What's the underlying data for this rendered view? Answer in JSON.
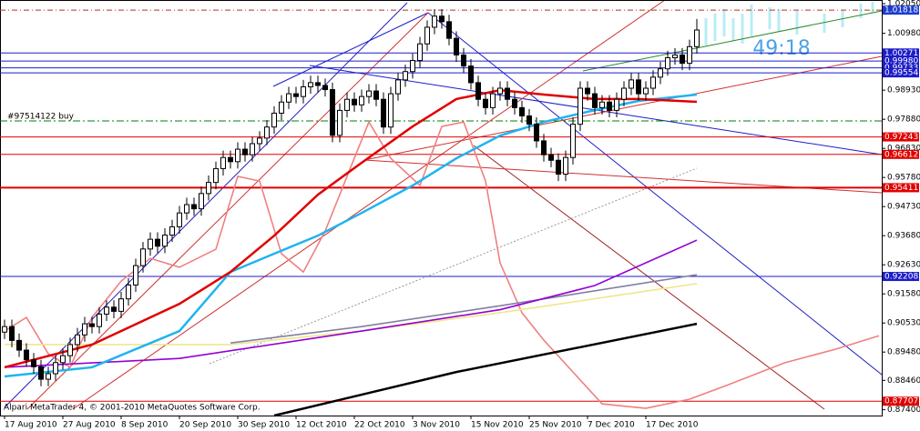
{
  "chart_data": {
    "type": "candlestick",
    "watermark": "Alpari MetaTrader 4, © 2001-2010 MetaQuotes Software Corp.",
    "countdown": "49:18",
    "categories": [
      "17 Aug 2010",
      null,
      null,
      null,
      null,
      null,
      null,
      null,
      "27 Aug 2010",
      null,
      null,
      null,
      null,
      null,
      null,
      null,
      "8 Sep 2010",
      null,
      null,
      null,
      null,
      null,
      null,
      null,
      "20 Sep 2010",
      null,
      null,
      null,
      null,
      null,
      null,
      null,
      "30 Sep 2010",
      null,
      null,
      null,
      null,
      null,
      null,
      null,
      "12 Oct 2010",
      null,
      null,
      null,
      null,
      null,
      null,
      null,
      "22 Oct 2010",
      null,
      null,
      null,
      null,
      null,
      null,
      null,
      "3 Nov 2010",
      null,
      null,
      null,
      null,
      null,
      null,
      null,
      "15 Nov 2010",
      null,
      null,
      null,
      null,
      null,
      null,
      null,
      "25 Nov 2010",
      null,
      null,
      null,
      null,
      null,
      null,
      null,
      "7 Dec 2010",
      null,
      null,
      null,
      null,
      null,
      null,
      null,
      "17 Dec 2010",
      null,
      null,
      null,
      null,
      null,
      null,
      null
    ],
    "open": [
      0.902,
      0.904,
      0.899,
      0.8955,
      0.892,
      0.8895,
      0.885,
      0.887,
      0.891,
      0.8935,
      0.8975,
      0.901,
      0.905,
      0.904,
      0.9085,
      0.911,
      0.9095,
      0.914,
      0.919,
      0.926,
      0.932,
      0.9355,
      0.933,
      0.937,
      0.94,
      0.945,
      0.948,
      0.9465,
      0.952,
      0.956,
      0.961,
      0.965,
      0.9635,
      0.968,
      0.966,
      0.97,
      0.972,
      0.976,
      0.981,
      0.985,
      0.988,
      0.987,
      0.9905,
      0.992,
      0.991,
      0.9895,
      0.973,
      0.982,
      0.986,
      0.984,
      0.987,
      0.989,
      0.986,
      0.976,
      0.988,
      0.993,
      0.996,
      1.0,
      1.006,
      1.012,
      1.016,
      1.014,
      1.008,
      1.002,
      0.998,
      0.992,
      0.986,
      0.983,
      0.988,
      0.99,
      0.986,
      0.983,
      0.98,
      0.977,
      0.971,
      0.966,
      0.964,
      0.959,
      0.965,
      0.977,
      0.99,
      0.988,
      0.983,
      0.985,
      0.982,
      0.986,
      0.99,
      0.993,
      0.988,
      0.99,
      0.994,
      0.997,
      1.001,
      1.002,
      0.999,
      1.005
    ],
    "high": [
      0.9065,
      0.9065,
      0.9015,
      0.898,
      0.8945,
      0.892,
      0.8895,
      0.8935,
      0.896,
      0.9,
      0.9035,
      0.9075,
      0.9075,
      0.911,
      0.9135,
      0.9135,
      0.9165,
      0.9215,
      0.9285,
      0.9345,
      0.938,
      0.938,
      0.9395,
      0.9425,
      0.9475,
      0.9505,
      0.9505,
      0.9545,
      0.9585,
      0.9635,
      0.9675,
      0.9675,
      0.9705,
      0.9705,
      0.9725,
      0.9745,
      0.9785,
      0.9835,
      0.9875,
      0.9905,
      0.9905,
      0.993,
      0.9945,
      0.9945,
      0.9935,
      0.992,
      0.9845,
      0.9885,
      0.9885,
      0.9895,
      0.9915,
      0.9915,
      0.9885,
      0.9905,
      0.9955,
      0.9985,
      1.0025,
      1.0085,
      1.0145,
      1.0185,
      1.0185,
      1.0165,
      1.0105,
      1.0045,
      1.0005,
      0.9945,
      0.9885,
      0.9905,
      0.9925,
      0.9925,
      0.9885,
      0.9855,
      0.9825,
      0.9795,
      0.9735,
      0.9685,
      0.9665,
      0.9675,
      0.9795,
      0.9925,
      0.9925,
      0.9905,
      0.9875,
      0.9875,
      0.9885,
      0.9925,
      0.9955,
      0.9955,
      0.9925,
      0.9965,
      0.9995,
      1.0035,
      1.0045,
      1.0045,
      1.0075,
      1.015
    ],
    "low": [
      0.8995,
      0.8965,
      0.893,
      0.8895,
      0.887,
      0.8825,
      0.8825,
      0.8845,
      0.8885,
      0.891,
      0.895,
      0.8985,
      0.9015,
      0.9015,
      0.906,
      0.907,
      0.907,
      0.9115,
      0.9165,
      0.9235,
      0.9295,
      0.9305,
      0.9305,
      0.9345,
      0.9375,
      0.9425,
      0.944,
      0.944,
      0.9495,
      0.9535,
      0.9585,
      0.961,
      0.961,
      0.9635,
      0.9635,
      0.9675,
      0.9695,
      0.9735,
      0.9785,
      0.9825,
      0.9845,
      0.9845,
      0.988,
      0.9885,
      0.987,
      0.9705,
      0.9705,
      0.9795,
      0.9815,
      0.9815,
      0.9845,
      0.9835,
      0.9735,
      0.9735,
      0.9855,
      0.9905,
      0.9935,
      0.9975,
      1.0035,
      1.0095,
      1.0115,
      1.0055,
      0.9995,
      0.9955,
      0.9895,
      0.9835,
      0.9805,
      0.9805,
      0.9855,
      0.9835,
      0.9805,
      0.9775,
      0.9745,
      0.9685,
      0.9635,
      0.9615,
      0.9565,
      0.9565,
      0.9625,
      0.9745,
      0.9855,
      0.9805,
      0.9805,
      0.9795,
      0.9795,
      0.9835,
      0.9875,
      0.9855,
      0.9855,
      0.9875,
      0.9915,
      0.9945,
      0.9985,
      0.9965,
      0.9965,
      1.0025
    ],
    "close": [
      0.904,
      0.899,
      0.8955,
      0.892,
      0.8895,
      0.885,
      0.887,
      0.891,
      0.8935,
      0.8975,
      0.901,
      0.905,
      0.904,
      0.9085,
      0.911,
      0.9095,
      0.914,
      0.919,
      0.926,
      0.932,
      0.9355,
      0.933,
      0.937,
      0.94,
      0.945,
      0.948,
      0.9465,
      0.952,
      0.956,
      0.961,
      0.965,
      0.9635,
      0.968,
      0.966,
      0.97,
      0.972,
      0.976,
      0.981,
      0.985,
      0.988,
      0.987,
      0.9905,
      0.992,
      0.991,
      0.9895,
      0.973,
      0.982,
      0.986,
      0.984,
      0.987,
      0.989,
      0.986,
      0.976,
      0.988,
      0.993,
      0.996,
      1.0,
      1.006,
      1.012,
      1.016,
      1.014,
      1.008,
      1.002,
      0.998,
      0.992,
      0.986,
      0.983,
      0.988,
      0.99,
      0.986,
      0.983,
      0.98,
      0.977,
      0.971,
      0.966,
      0.964,
      0.959,
      0.965,
      0.977,
      0.99,
      0.988,
      0.983,
      0.985,
      0.982,
      0.986,
      0.99,
      0.993,
      0.988,
      0.99,
      0.994,
      0.997,
      1.001,
      1.002,
      0.999,
      1.005,
      1.011
    ],
    "bull_color": "#ffffff",
    "bear_color": "#000000",
    "ylim": [
      0.8719,
      1.0215
    ],
    "yticks": [
      {
        "value": 1.0205,
        "label": "1.02050"
      },
      {
        "value": 1.0098,
        "label": "1.00980"
      },
      {
        "value": 0.9893,
        "label": "0.98930"
      },
      {
        "value": 0.9788,
        "label": "0.97880"
      },
      {
        "value": 0.9683,
        "label": "0.96830"
      },
      {
        "value": 0.9578,
        "label": "0.95780"
      },
      {
        "value": 0.9473,
        "label": "0.94730"
      },
      {
        "value": 0.9368,
        "label": "0.93680"
      },
      {
        "value": 0.9263,
        "label": "0.92630"
      },
      {
        "value": 0.9158,
        "label": "0.91580"
      },
      {
        "value": 0.9053,
        "label": "0.90530"
      },
      {
        "value": 0.8948,
        "label": "0.89480"
      },
      {
        "value": 0.8846,
        "label": "0.88460"
      },
      {
        "value": 0.874,
        "label": "0.87400"
      }
    ],
    "levels": [
      {
        "value": 1.01818,
        "color": "#b03020",
        "box": "#1c3cd0"
      },
      {
        "value": 1.00271,
        "color": "#1c1cc8"
      },
      {
        "value": 0.9998,
        "label": "0.99980",
        "color": "#1c1cc8"
      },
      {
        "value": 0.99733,
        "color": "#1c1cc8"
      },
      {
        "value": 0.99554,
        "color": "#1c1cc8"
      },
      {
        "value": 0.97243,
        "color": "#e00000"
      },
      {
        "value": 0.96612,
        "color": "#e00000"
      },
      {
        "value": 0.95411,
        "color": "#e00000"
      },
      {
        "value": 0.92208,
        "color": "#1c1cc8"
      },
      {
        "value": 0.87707,
        "color": "#e00000"
      }
    ],
    "order": {
      "label": "#97514122 buy",
      "value": 0.9782,
      "color": "#008000"
    },
    "lines": [
      {
        "color": "#f08080",
        "x": [
          0,
          3,
          6,
          9,
          12,
          16,
          20,
          24,
          29,
          32,
          35,
          38,
          41,
          44,
          47,
          50,
          53,
          57,
          60,
          63,
          66,
          68,
          71,
          74,
          78,
          82,
          88,
          94,
          99,
          107,
          114,
          120
        ],
        "values": [
          0.9024,
          0.9073,
          0.8942,
          0.8893,
          0.9073,
          0.9204,
          0.9286,
          0.9254,
          0.9319,
          0.9582,
          0.9565,
          0.9303,
          0.9237,
          0.9385,
          0.9582,
          0.9778,
          0.9647,
          0.9549,
          0.9762,
          0.9778,
          0.9565,
          0.927,
          0.909,
          0.8991,
          0.8876,
          0.8761,
          0.8745,
          0.8778,
          0.8827,
          0.8909,
          0.8958,
          0.9007
        ]
      },
      {
        "color": "#f0e68c",
        "x": [
          0,
          31,
          49,
          68,
          95
        ],
        "values": [
          0.8975,
          0.8975,
          0.9024,
          0.909,
          0.9195
        ]
      },
      {
        "color": "#8080a0",
        "x": [
          31,
          49,
          68,
          95
        ],
        "values": [
          0.8981,
          0.904,
          0.9115,
          0.9227
        ]
      },
      {
        "color": "#9400d3",
        "x": [
          0,
          24,
          49,
          68,
          81,
          95
        ],
        "values": [
          0.8893,
          0.8925,
          0.9024,
          0.9101,
          0.9188,
          0.9352
        ]
      },
      {
        "color": "#000000",
        "x": [
          37,
          62,
          95
        ],
        "values": [
          0.8719,
          0.8876,
          0.905
        ]
      },
      {
        "color": "#1eb4f0",
        "x": [
          0,
          12,
          24,
          31,
          37,
          43,
          49,
          56,
          62,
          68,
          74,
          81,
          87,
          95
        ],
        "values": [
          0.886,
          0.8893,
          0.9024,
          0.9237,
          0.9303,
          0.9368,
          0.945,
          0.9549,
          0.9647,
          0.9729,
          0.9778,
          0.9821,
          0.9854,
          0.9877
        ]
      },
      {
        "color": "#e00000",
        "x": [
          0,
          12,
          24,
          31,
          37,
          43,
          49,
          56,
          62,
          68,
          74,
          81,
          87,
          95
        ],
        "values": [
          0.8893,
          0.8975,
          0.9122,
          0.9237,
          0.9368,
          0.9516,
          0.9631,
          0.9762,
          0.9861,
          0.9893,
          0.9877,
          0.9861,
          0.9861,
          0.9851
        ]
      }
    ]
  }
}
